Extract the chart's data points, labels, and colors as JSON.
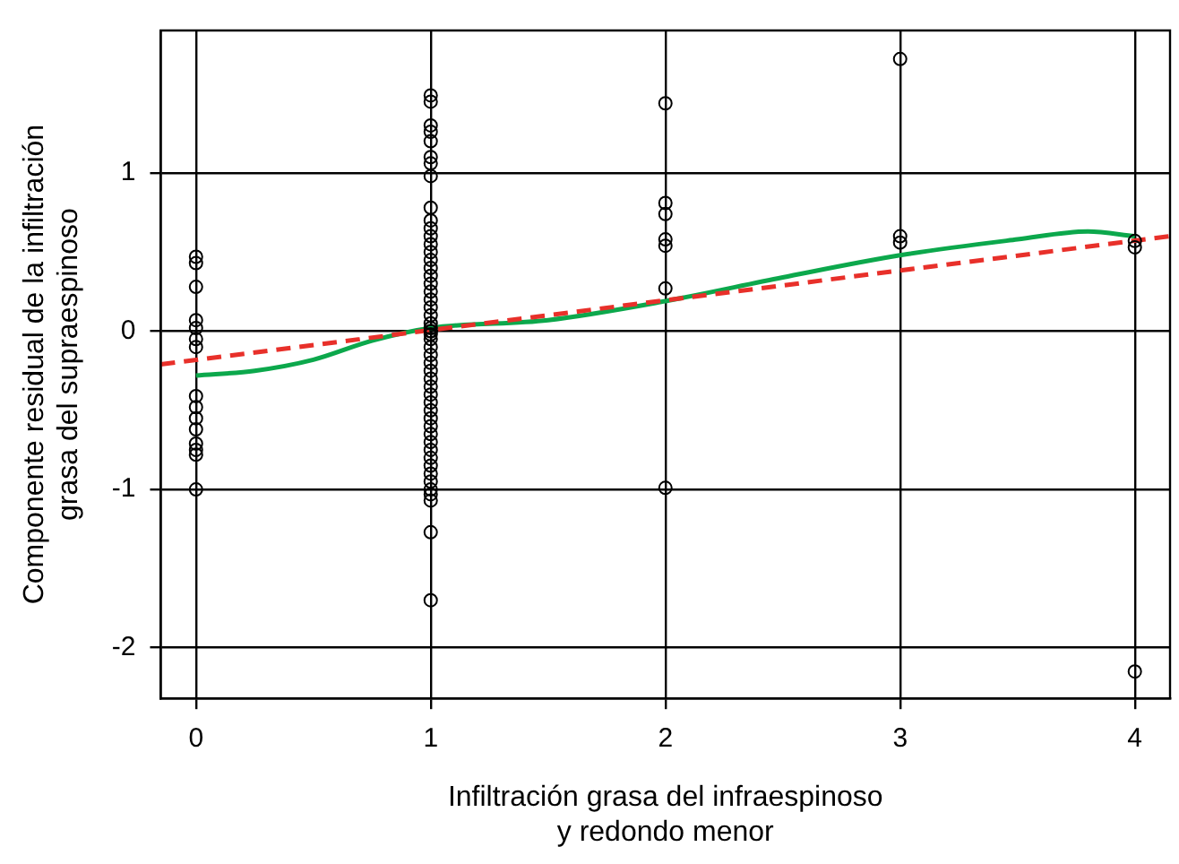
{
  "chart_data": {
    "type": "scatter",
    "xlabel": "Infiltración grasa del infraespinoso\ny redondo menor",
    "ylabel": "Componente residual de la infiltración\ngrasa del supraespinoso",
    "xlim": [
      -0.15,
      4.15
    ],
    "ylim": [
      -2.32,
      1.9
    ],
    "xticks": [
      0,
      1,
      2,
      3,
      4
    ],
    "yticks": [
      -2,
      -1,
      0,
      1
    ],
    "grid": true,
    "legend": false,
    "marker": "circle",
    "series": [
      {
        "color": "#000000",
        "x": [
          0,
          0,
          0,
          0,
          0,
          0,
          0,
          0,
          0,
          0,
          0,
          0,
          0,
          0,
          0,
          1,
          1,
          1,
          1,
          1,
          1,
          1,
          1,
          1,
          1,
          1,
          1,
          1,
          1,
          1,
          1,
          1,
          1,
          1,
          1,
          1,
          1,
          1,
          1,
          1,
          1,
          1,
          1,
          1,
          1,
          1,
          1,
          1,
          1,
          1,
          1,
          1,
          1,
          1,
          1,
          1,
          1,
          1,
          1,
          1,
          1,
          1,
          1,
          1,
          1,
          1,
          2,
          2,
          2,
          2,
          2,
          2,
          2,
          3,
          3,
          3,
          4,
          4,
          4
        ],
        "values": [
          0.47,
          0.43,
          0.28,
          0.07,
          0.02,
          -0.05,
          -0.1,
          -0.41,
          -0.48,
          -0.55,
          -0.62,
          -0.71,
          -0.75,
          -0.78,
          -1.0,
          1.49,
          1.45,
          1.3,
          1.26,
          1.2,
          1.1,
          1.06,
          0.98,
          0.78,
          0.7,
          0.65,
          0.6,
          0.55,
          0.5,
          0.45,
          0.4,
          0.35,
          0.3,
          0.25,
          0.2,
          0.15,
          0.1,
          0.05,
          0,
          -0.05,
          -0.1,
          -0.15,
          -0.2,
          -0.25,
          -0.3,
          -0.35,
          -0.4,
          -0.45,
          -0.5,
          -0.55,
          -0.6,
          -0.65,
          -0.7,
          -0.75,
          -0.8,
          -0.85,
          -0.9,
          -0.95,
          -1.0,
          -1.03,
          -1.07,
          -1.27,
          -1.7,
          0.02,
          -0.02,
          0.0,
          1.44,
          0.81,
          0.74,
          0.58,
          0.54,
          0.27,
          -0.99,
          1.72,
          0.6,
          0.56,
          0.57,
          0.53,
          -2.15
        ]
      },
      {
        "type": "line",
        "color": "#e8302a",
        "line_style": "dashed",
        "marker": "none",
        "x": [
          -0.15,
          4.15
        ],
        "values": [
          -0.21,
          0.6
        ]
      },
      {
        "type": "line",
        "color": "#0ca84c",
        "line_style": "solid",
        "marker": "none",
        "x": [
          0,
          0.25,
          0.5,
          0.75,
          1,
          1.5,
          2,
          2.5,
          3,
          3.5,
          3.8,
          4
        ],
        "values": [
          -0.28,
          -0.25,
          -0.18,
          -0.06,
          0.02,
          0.07,
          0.19,
          0.34,
          0.48,
          0.58,
          0.63,
          0.6
        ]
      }
    ]
  }
}
